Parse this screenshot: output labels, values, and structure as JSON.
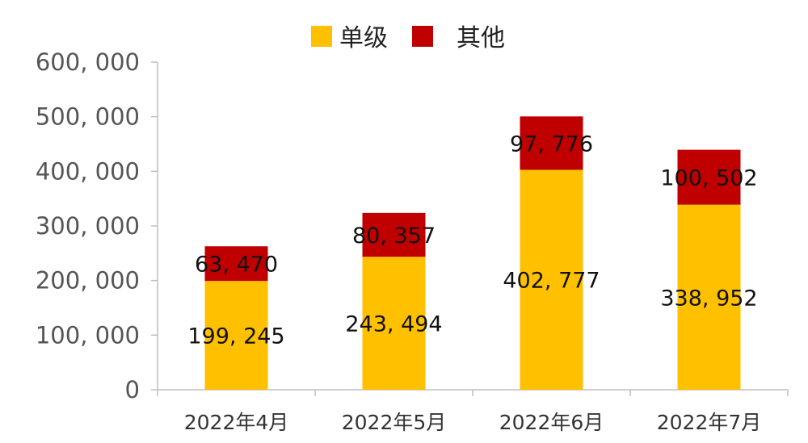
{
  "chart_data": {
    "type": "bar",
    "stacked": true,
    "categories": [
      "2022年4月",
      "2022年5月",
      "2022年6月",
      "2022年7月"
    ],
    "series": [
      {
        "name": "单级",
        "color": "#FFC000",
        "values": [
          199245,
          243494,
          402777,
          338952
        ],
        "labels": [
          "199, 245",
          "243, 494",
          "402, 777",
          "338, 952"
        ]
      },
      {
        "name": "其他",
        "color": "#C00000",
        "values": [
          63470,
          80357,
          97776,
          100502
        ],
        "labels": [
          "63, 470",
          "80, 357",
          "97, 776",
          "100, 502"
        ]
      }
    ],
    "ylim": [
      0,
      600000
    ],
    "yticks": [
      0,
      100000,
      200000,
      300000,
      400000,
      500000,
      600000
    ],
    "ytick_labels": [
      "0",
      "100, 000",
      "200, 000",
      "300, 000",
      "400, 000",
      "500, 000",
      "600, 000"
    ],
    "title": "",
    "xlabel": "",
    "ylabel": "",
    "legend_position": "top-center",
    "grid": false
  }
}
